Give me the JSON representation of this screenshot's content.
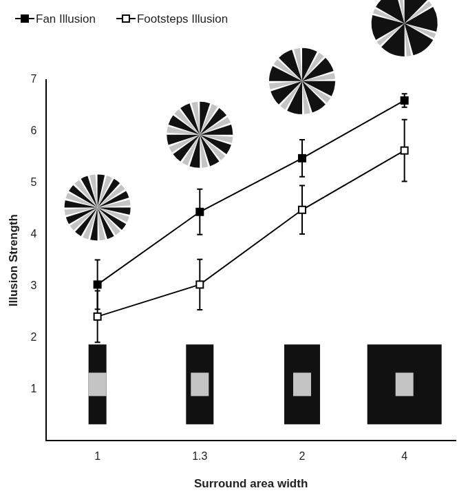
{
  "chart_data": {
    "type": "line",
    "x_label": "Surround area width",
    "y_label": "Illusion Strength",
    "categories": [
      "1",
      "1.3",
      "2",
      "4"
    ],
    "series": [
      {
        "name": "Fan Illusion",
        "color": "#000000",
        "marker": "square",
        "values": [
          3.03,
          4.44,
          5.48,
          6.6
        ],
        "errors": [
          0.48,
          0.44,
          0.36,
          0.13
        ]
      },
      {
        "name": "Footsteps Illusion",
        "color": "#000000",
        "marker": "open_square",
        "values": [
          2.41,
          3.03,
          4.48,
          5.63
        ],
        "errors": [
          0.5,
          0.49,
          0.47,
          0.6
        ]
      }
    ],
    "ylim": [
      0,
      7
    ],
    "yticks": [
      1,
      2,
      3,
      4,
      5,
      6,
      7
    ],
    "grid": false,
    "legend": "top-left"
  }
}
